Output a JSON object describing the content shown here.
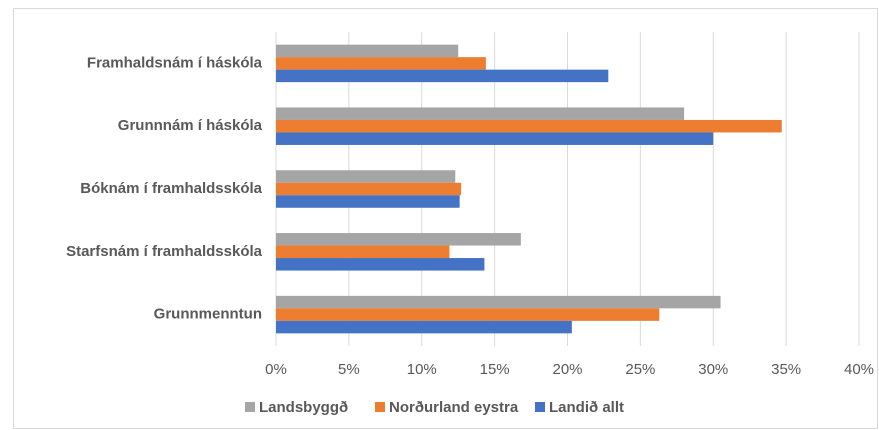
{
  "chart_data": {
    "type": "hbar",
    "categories": [
      "Framhaldsnám í háskóla",
      "Grunnnám í háskóla",
      "Bóknám í framhaldsskóla",
      "Starfsnám í framhaldsskóla",
      "Grunnmenntun"
    ],
    "series": [
      {
        "name": "Landsbyggð",
        "color": "#a5a5a5",
        "values": [
          12.5,
          28.0,
          12.3,
          16.8,
          30.5
        ]
      },
      {
        "name": "Norðurland eystra",
        "color": "#ed7d31",
        "values": [
          14.4,
          34.7,
          12.7,
          11.9,
          26.3
        ]
      },
      {
        "name": "Landið allt",
        "color": "#4472c4",
        "values": [
          22.8,
          30.0,
          12.6,
          14.3,
          20.3
        ]
      }
    ],
    "xlim": [
      0,
      40
    ],
    "xticks": [
      {
        "value": 0,
        "label": "0%"
      },
      {
        "value": 5,
        "label": "5%"
      },
      {
        "value": 10,
        "label": "10%"
      },
      {
        "value": 15,
        "label": "15%"
      },
      {
        "value": 20,
        "label": "20%"
      },
      {
        "value": 25,
        "label": "25%"
      },
      {
        "value": 30,
        "label": "30%"
      },
      {
        "value": 35,
        "label": "35%"
      },
      {
        "value": 40,
        "label": "40%"
      }
    ],
    "grid": true,
    "legend": "bottom"
  }
}
